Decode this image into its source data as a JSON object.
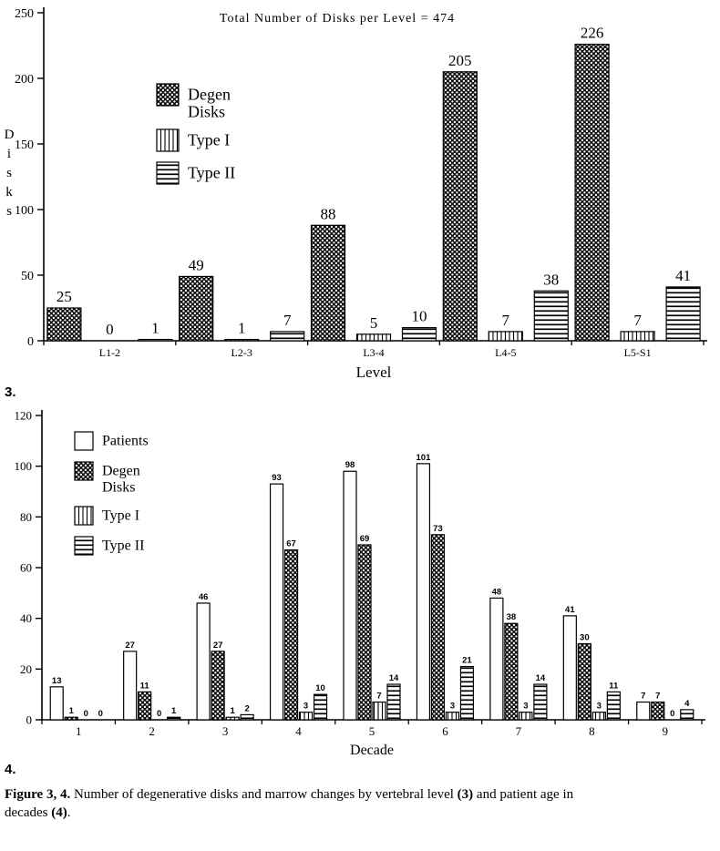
{
  "figure": {
    "marker3": "3.",
    "marker4": "4.",
    "caption": {
      "label": "Figure 3, 4.",
      "text1": "  Number of degenerative disks and marrow changes by vertebral level ",
      "ref3": "(3)",
      "text2": " and patient age in decades ",
      "ref4": "(4)",
      "text3": "."
    }
  },
  "chart_data": [
    {
      "type": "bar",
      "title": "Total Number of Disks per Level = 474",
      "xlabel": "Level",
      "ylabel": "Disks",
      "ylim": [
        0,
        250
      ],
      "ytick_step": 50,
      "grid": false,
      "legend_position": "upper left inside plot",
      "categories": [
        "L1-2",
        "L2-3",
        "L3-4",
        "L4-5",
        "L5-S1"
      ],
      "series": [
        {
          "name": "Degen Disks",
          "pattern": "dots",
          "legend_lines": [
            "Degen",
            "Disks"
          ],
          "values": [
            25,
            49,
            88,
            205,
            226
          ]
        },
        {
          "name": "Type I",
          "pattern": "vlines",
          "legend_lines": [
            "Type I"
          ],
          "values": [
            0,
            1,
            5,
            7,
            7
          ]
        },
        {
          "name": "Type II",
          "pattern": "hlines",
          "legend_lines": [
            "Type II"
          ],
          "values": [
            1,
            7,
            10,
            38,
            41
          ]
        }
      ]
    },
    {
      "type": "bar",
      "title": "",
      "xlabel": "Decade",
      "ylabel": "",
      "ylim": [
        0,
        120
      ],
      "ytick_step": 20,
      "grid": false,
      "legend_position": "upper left inside plot",
      "categories": [
        "1",
        "2",
        "3",
        "4",
        "5",
        "6",
        "7",
        "8",
        "9"
      ],
      "series": [
        {
          "name": "Patients",
          "pattern": "white",
          "legend_lines": [
            "Patients"
          ],
          "values": [
            13,
            27,
            46,
            93,
            98,
            101,
            48,
            41,
            7
          ]
        },
        {
          "name": "Degen Disks",
          "pattern": "dots",
          "legend_lines": [
            "Degen",
            "Disks"
          ],
          "values": [
            1,
            11,
            27,
            67,
            69,
            73,
            38,
            30,
            7
          ]
        },
        {
          "name": "Type I",
          "pattern": "vlines",
          "legend_lines": [
            "Type I"
          ],
          "values": [
            0,
            0,
            1,
            3,
            7,
            3,
            3,
            3,
            0
          ]
        },
        {
          "name": "Type II",
          "pattern": "hlines",
          "legend_lines": [
            "Type II"
          ],
          "values": [
            0,
            1,
            2,
            10,
            14,
            21,
            14,
            11,
            4
          ]
        }
      ]
    }
  ]
}
